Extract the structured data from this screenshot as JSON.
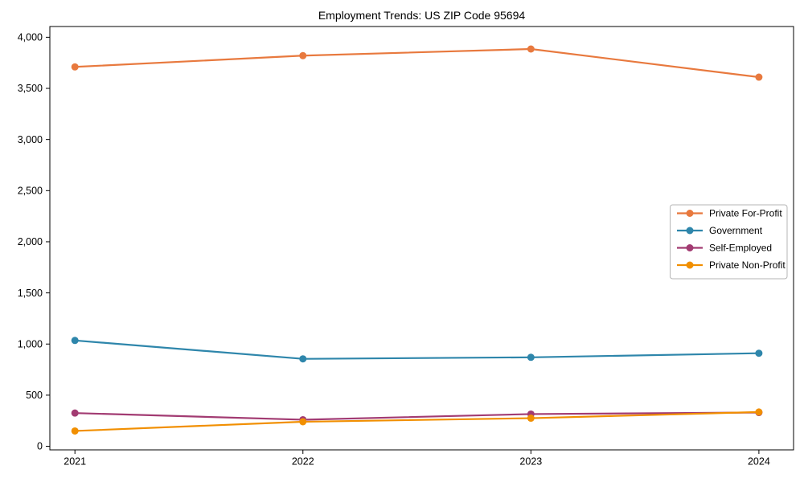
{
  "chart_data": {
    "type": "line",
    "title": "Employment Trends: US ZIP Code 95694",
    "xlabel": "",
    "ylabel": "",
    "x": [
      2021,
      2022,
      2023,
      2024
    ],
    "x_tick_labels": [
      "2021",
      "2022",
      "2023",
      "2024"
    ],
    "y_ticks": [
      0,
      500,
      1000,
      1500,
      2000,
      2500,
      3000,
      3500,
      4000
    ],
    "y_tick_labels": [
      "0",
      "500",
      "1,000",
      "1,500",
      "2,000",
      "2,500",
      "3,000",
      "3,500",
      "4,000"
    ],
    "xlim": [
      2020.89,
      2024.152
    ],
    "ylim": [
      -35,
      4105
    ],
    "grid": false,
    "legend_position": "center right",
    "axes_color": "#000000",
    "background_color": "#ffffff",
    "legend_border_color": "#b5b5b5",
    "series": [
      {
        "name": "Private For-Profit",
        "color": "#E8793E",
        "marker": "circle",
        "values": [
          3710,
          3820,
          3885,
          3610
        ]
      },
      {
        "name": "Government",
        "color": "#2E86AB",
        "marker": "circle",
        "values": [
          1035,
          855,
          870,
          910
        ]
      },
      {
        "name": "Self-Employed",
        "color": "#A23B72",
        "marker": "circle",
        "values": [
          325,
          260,
          315,
          330
        ]
      },
      {
        "name": "Private Non-Profit",
        "color": "#F18F01",
        "marker": "circle",
        "values": [
          150,
          240,
          275,
          335
        ]
      }
    ]
  }
}
